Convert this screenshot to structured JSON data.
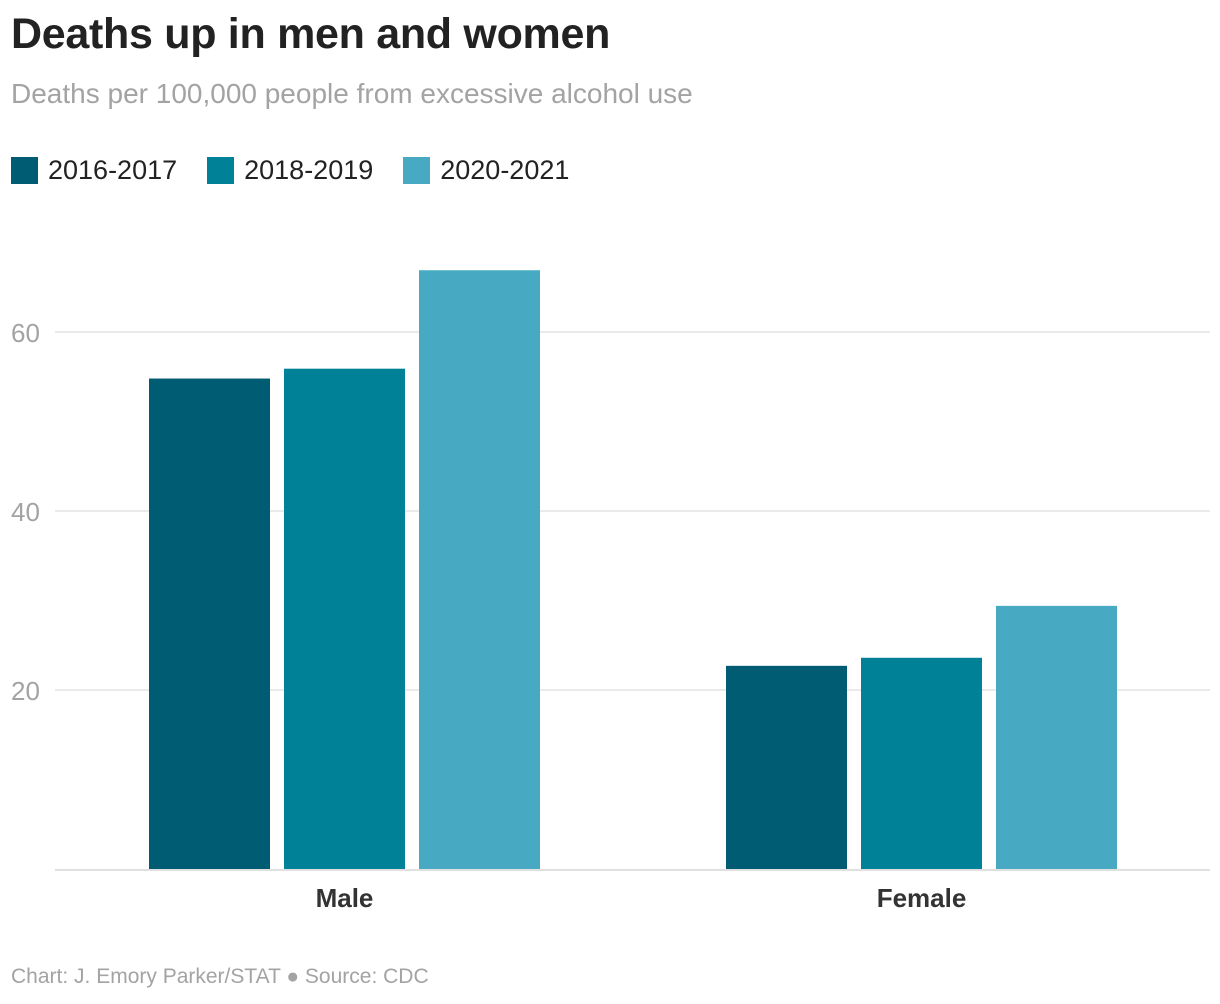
{
  "header": {
    "title": "Deaths up in men and women",
    "subtitle": "Deaths per 100,000 people from excessive alcohol use"
  },
  "legend": {
    "items": [
      {
        "label": "2016-2017",
        "color": "#005c73"
      },
      {
        "label": "2018-2019",
        "color": "#008197"
      },
      {
        "label": "2020-2021",
        "color": "#47a9c2"
      }
    ]
  },
  "footer": {
    "credit": "Chart: J. Emory Parker/STAT ● Source: CDC"
  },
  "chart_data": {
    "type": "bar",
    "title": "Deaths up in men and women",
    "subtitle": "Deaths per 100,000 people from excessive alcohol use",
    "categories": [
      "Male",
      "Female"
    ],
    "series": [
      {
        "name": "2016-2017",
        "color": "#005c73",
        "values": [
          54.8,
          22.7
        ]
      },
      {
        "name": "2018-2019",
        "color": "#008197",
        "values": [
          55.9,
          23.6
        ]
      },
      {
        "name": "2020-2021",
        "color": "#47a9c2",
        "values": [
          66.9,
          29.4
        ]
      }
    ],
    "yticks": [
      20,
      40,
      60
    ],
    "ylim": [
      0,
      70
    ],
    "xlabel": "",
    "ylabel": "",
    "grid": true,
    "legend_position": "top-left"
  }
}
